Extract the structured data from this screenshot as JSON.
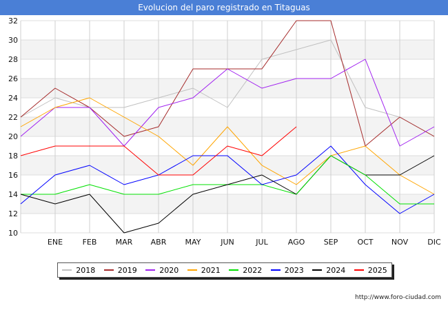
{
  "chart_data": {
    "type": "line",
    "title": "Evolucion del paro registrado en Titaguas",
    "categories": [
      "",
      "ENE",
      "FEB",
      "MAR",
      "ABR",
      "MAY",
      "JUN",
      "JUL",
      "AGO",
      "SEP",
      "OCT",
      "NOV",
      "DIC"
    ],
    "ylim": [
      10,
      32
    ],
    "yticks": [
      10,
      12,
      14,
      16,
      18,
      20,
      22,
      24,
      26,
      28,
      30,
      32
    ],
    "grid": true,
    "legend_position": "bottom",
    "series": [
      {
        "name": "2018",
        "color": "#c0c0c0",
        "values": [
          22,
          24,
          23,
          23,
          24,
          25,
          23,
          28,
          29,
          30,
          23,
          22,
          20
        ]
      },
      {
        "name": "2019",
        "color": "#a52a2a",
        "values": [
          22,
          25,
          23,
          20,
          21,
          27,
          27,
          27,
          32,
          32,
          19,
          22,
          20
        ]
      },
      {
        "name": "2020",
        "color": "#a020f0",
        "values": [
          20,
          23,
          23,
          19,
          23,
          24,
          27,
          25,
          26,
          26,
          28,
          19,
          21
        ]
      },
      {
        "name": "2021",
        "color": "#ffa500",
        "values": [
          21,
          23,
          24,
          22,
          20,
          17,
          21,
          17,
          15,
          18,
          19,
          16,
          14
        ]
      },
      {
        "name": "2022",
        "color": "#00e000",
        "values": [
          14,
          14,
          15,
          14,
          14,
          15,
          15,
          15,
          14,
          null,
          null,
          null,
          null
        ]
      },
      {
        "name": "2023",
        "color": "#0000ff",
        "values": [
          13,
          16,
          17,
          15,
          16,
          18,
          18,
          15,
          16,
          19,
          15,
          12,
          14
        ]
      },
      {
        "name": "2024",
        "color": "#000000",
        "values": [
          14,
          13,
          14,
          10,
          11,
          14,
          15,
          16,
          14,
          18,
          16,
          16,
          18
        ]
      },
      {
        "name": "2025",
        "color": "#ff0000",
        "values": [
          18,
          19,
          19,
          19,
          16,
          16,
          19,
          18,
          21,
          null,
          null,
          null,
          null
        ]
      }
    ],
    "extra_segments": [
      {
        "series": "2022",
        "points": [
          [
            8,
            14
          ],
          [
            9,
            18
          ],
          [
            10,
            16
          ],
          [
            11,
            13
          ],
          [
            12,
            13
          ]
        ]
      }
    ]
  },
  "footer": "http://www.foro-ciudad.com"
}
